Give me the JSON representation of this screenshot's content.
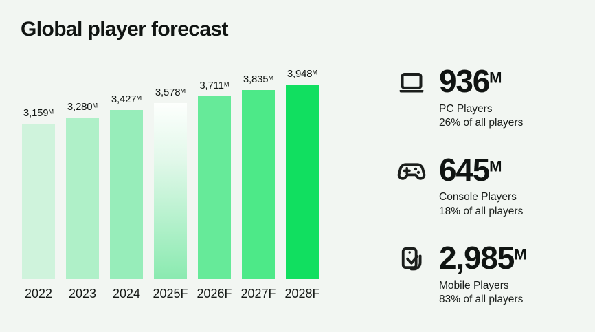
{
  "page": {
    "title": "Global player forecast",
    "background_color": "#f2f6f2",
    "text_color": "#101412"
  },
  "chart_data": {
    "type": "bar",
    "title": "Global player forecast",
    "categories": [
      "2022",
      "2023",
      "2024",
      "2025F",
      "2026F",
      "2027F",
      "2028F"
    ],
    "values": [
      3159,
      3280,
      3427,
      3578,
      3711,
      3835,
      3948
    ],
    "value_labels": [
      "3,159",
      "3,280",
      "3,427",
      "3,578",
      "3,711",
      "3,835",
      "3,948"
    ],
    "value_suffix": "M",
    "unit": "millions of players",
    "xlabel": "",
    "ylabel": "",
    "ylim": [
      0,
      3948
    ],
    "grid": false,
    "legend": "none",
    "bar_colors": [
      "#cff3dc",
      "#aff0c8",
      "#97edba",
      "gradient",
      "#66ea99",
      "#4de988",
      "#11df60"
    ],
    "gradient_bar": {
      "top": "#fdfffd",
      "mid": "#e2f8ea",
      "bottom": "#8aeab0"
    }
  },
  "stats": [
    {
      "icon": "laptop-icon",
      "number": "936",
      "suffix": "M",
      "label": "PC Players",
      "share": "26% of all players"
    },
    {
      "icon": "gamepad-icon",
      "number": "645",
      "suffix": "M",
      "label": "Console Players",
      "share": "18% of all players"
    },
    {
      "icon": "phone-hand-icon",
      "number": "2,985",
      "suffix": "M",
      "label": "Mobile Players",
      "share": "83% of all players"
    }
  ]
}
